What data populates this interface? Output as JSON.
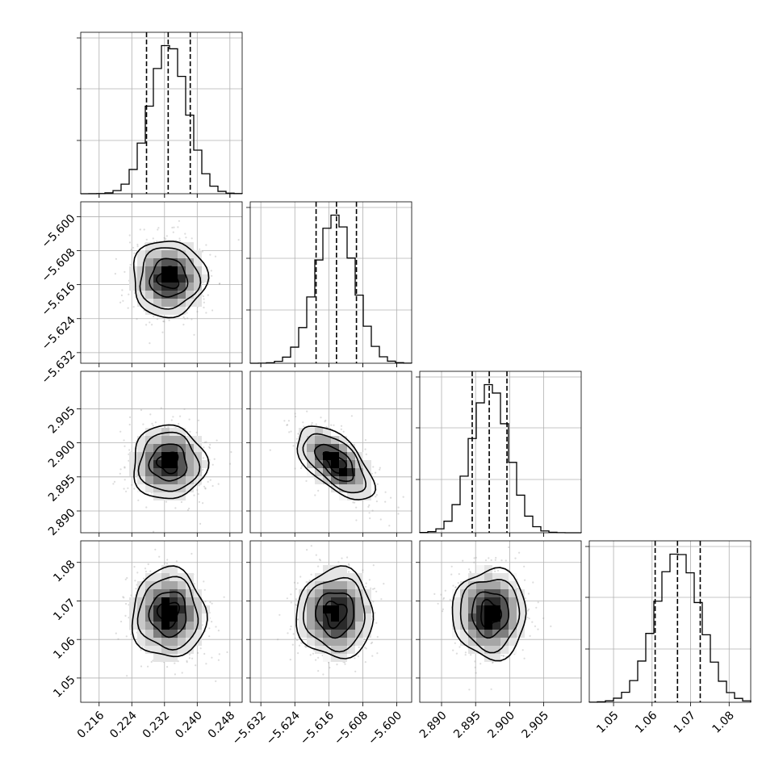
{
  "chart_data": {
    "type": "corner",
    "title": "",
    "grid": true,
    "parameters": [
      {
        "index": 0,
        "range": [
          0.2115,
          0.251
        ],
        "mean": 0.233,
        "std": 0.0045,
        "quantiles": [
          0.2276,
          0.2329,
          0.2383
        ],
        "ticks": [
          0.216,
          0.224,
          0.232,
          0.24,
          0.248
        ],
        "tick_labels": [
          "0.216",
          "0.224",
          "0.232",
          "0.240",
          "0.248"
        ]
      },
      {
        "index": 1,
        "range": [
          -5.6345,
          -5.5965
        ],
        "mean": -5.6145,
        "std": 0.0045,
        "quantiles": [
          -5.619,
          -5.6142,
          -5.6095
        ],
        "ticks": [
          -5.632,
          -5.624,
          -5.616,
          -5.608,
          -5.6
        ],
        "tick_labels": [
          "−5.632",
          "−5.624",
          "−5.616",
          "−5.608",
          "−5.600"
        ]
      },
      {
        "index": 2,
        "range": [
          2.8868,
          2.9105
        ],
        "mean": 2.8971,
        "std": 0.0027,
        "quantiles": [
          2.8945,
          2.897,
          2.8996
        ],
        "ticks": [
          2.89,
          2.895,
          2.9,
          2.905
        ],
        "tick_labels": [
          "2.890",
          "2.895",
          "2.900",
          "2.905"
        ]
      },
      {
        "index": 3,
        "range": [
          1.0437,
          1.0856
        ],
        "mean": 1.0667,
        "std": 0.0058,
        "quantiles": [
          1.0608,
          1.0666,
          1.0725
        ],
        "ticks": [
          1.05,
          1.06,
          1.07,
          1.08
        ],
        "tick_labels": [
          "1.05",
          "1.06",
          "1.07",
          "1.08"
        ]
      }
    ],
    "correlations": [
      [
        1.0,
        0.0,
        0.0,
        0.0
      ],
      [
        0.0,
        1.0,
        -0.6,
        0.0
      ],
      [
        0.0,
        -0.6,
        1.0,
        0.0
      ],
      [
        0.0,
        0.0,
        0.0,
        1.0
      ]
    ],
    "histogram_bins": 20,
    "contour_levels": [
      0.118,
      0.393,
      0.675,
      0.865
    ]
  }
}
